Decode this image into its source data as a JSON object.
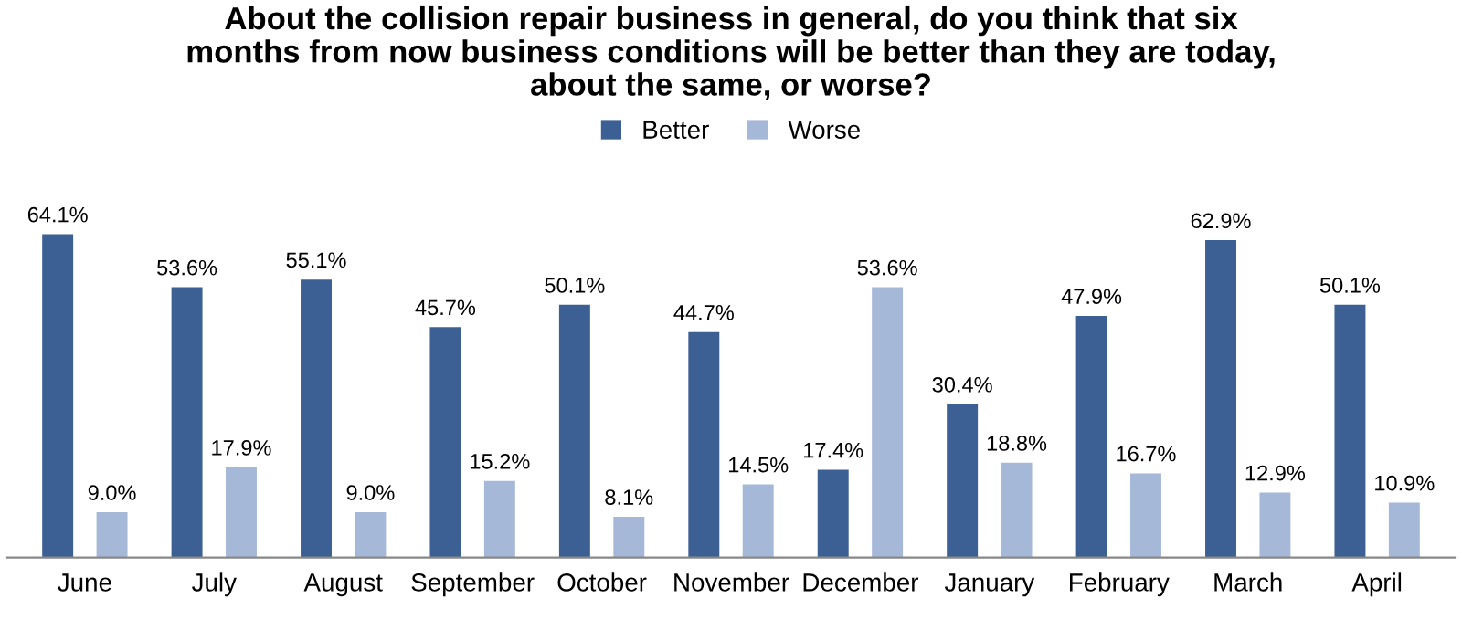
{
  "chart_data": {
    "type": "bar",
    "title": "About the collision repair business in general, do you think that six\nmonths from now business conditions will be better than they are today,\nabout the same, or worse?",
    "categories": [
      "June",
      "July",
      "August",
      "September",
      "October",
      "November",
      "December",
      "January",
      "February",
      "March",
      "April"
    ],
    "series": [
      {
        "name": "Better",
        "color": "#3c5f94",
        "values": [
          64.1,
          53.6,
          55.1,
          45.7,
          50.1,
          44.7,
          17.4,
          30.4,
          47.9,
          62.9,
          50.1
        ],
        "value_labels": [
          "64.1%",
          "53.6%",
          "55.1%",
          "45.7%",
          "50.1%",
          "44.7%",
          "17.4%",
          "30.4%",
          "47.9%",
          "62.9%",
          "50.1%"
        ]
      },
      {
        "name": "Worse",
        "color": "#a6b8d8",
        "values": [
          9.0,
          17.9,
          9.0,
          15.2,
          8.1,
          14.5,
          53.6,
          18.8,
          16.7,
          12.9,
          10.9
        ],
        "value_labels": [
          "9.0%",
          "17.9%",
          "9.0%",
          "15.2%",
          "8.1%",
          "14.5%",
          "53.6%",
          "18.8%",
          "16.7%",
          "12.9%",
          "10.9%"
        ]
      }
    ],
    "legend": "top",
    "grid": false
  }
}
